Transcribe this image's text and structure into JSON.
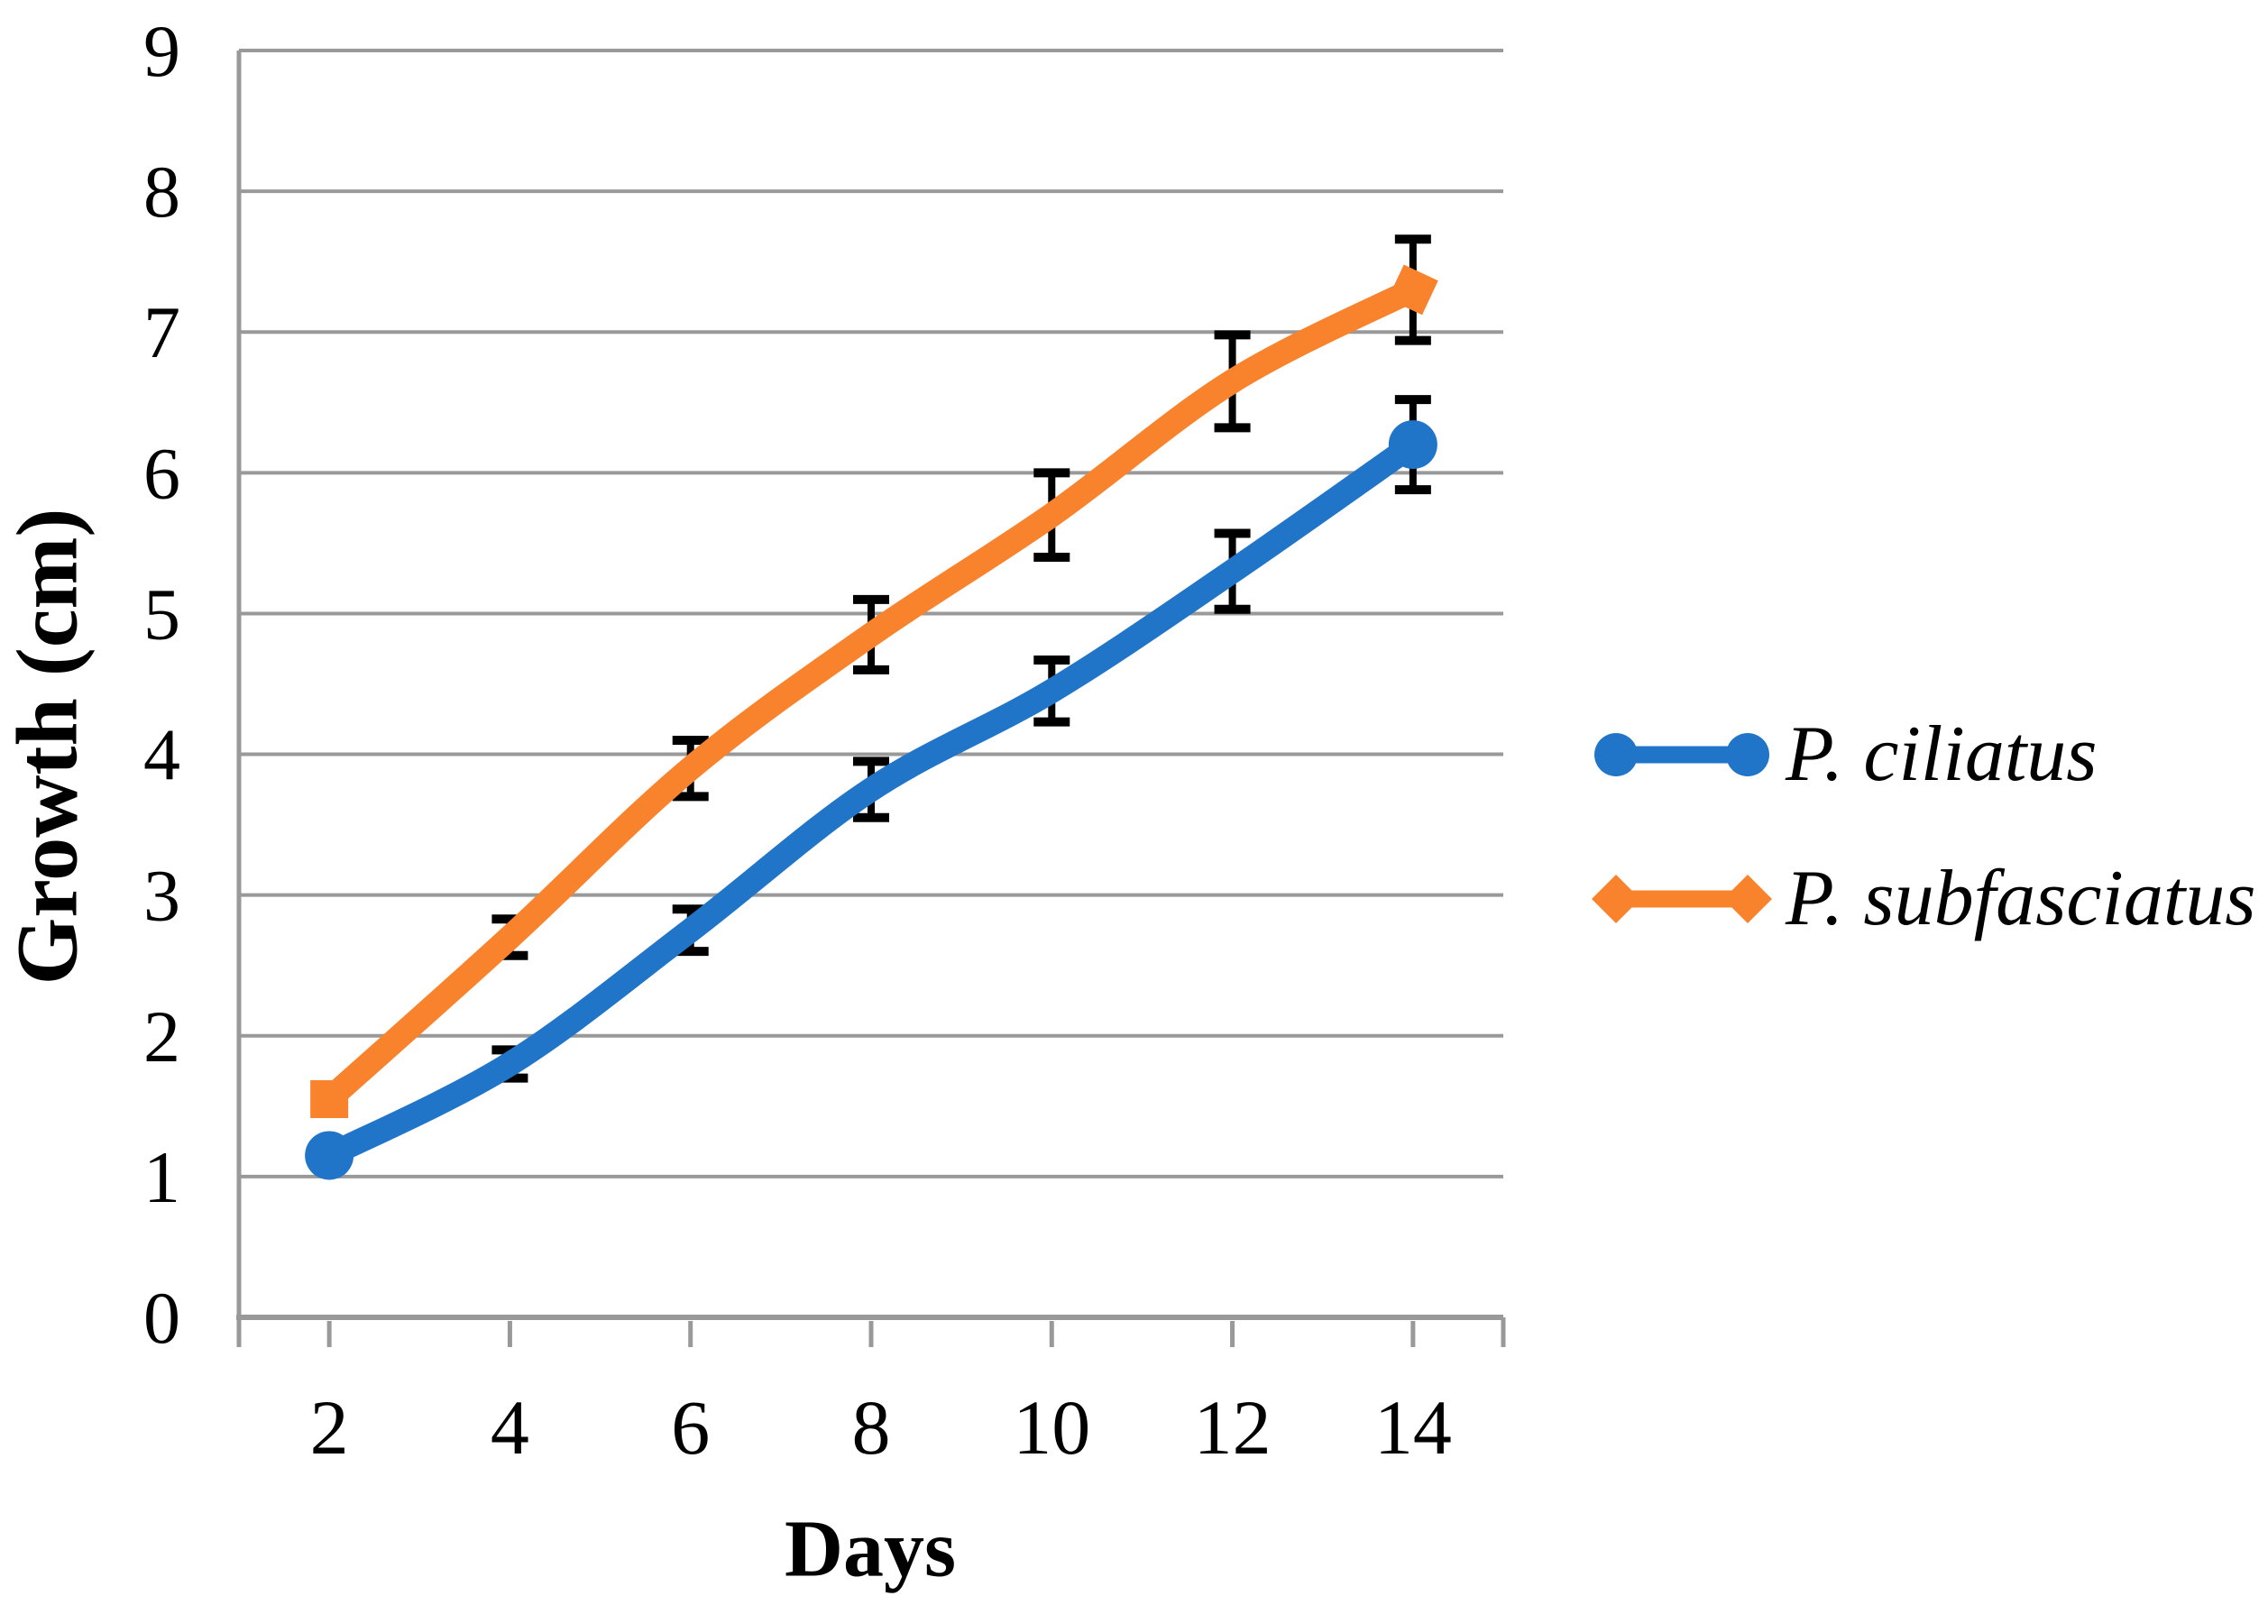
{
  "chart_data": {
    "type": "line",
    "title": "",
    "xlabel": "Days",
    "ylabel": "Growth (cm)",
    "x": [
      2,
      4,
      6,
      8,
      10,
      12,
      14
    ],
    "x_tick_labels": [
      "2",
      "4",
      "6",
      "8",
      "10",
      "12",
      "14"
    ],
    "y_ticks": [
      0,
      1,
      2,
      3,
      4,
      5,
      6,
      7,
      8,
      9
    ],
    "ylim": [
      0,
      9
    ],
    "xlim_categories": 7,
    "grid": "horizontal",
    "legend_position": "right",
    "colors": {
      "grid": "#999999",
      "axis": "#999999",
      "error_bar": "#000000",
      "text": "#000000"
    },
    "series": [
      {
        "name": "P. ciliatus",
        "color": "#2075C8",
        "marker": "circle",
        "marker_on": "endpoints-only",
        "smooth": true,
        "values": [
          1.15,
          1.8,
          2.75,
          3.75,
          4.45,
          5.3,
          6.2
        ],
        "error_bars": [
          0.05,
          0.1,
          0.15,
          0.2,
          0.22,
          0.27,
          0.32
        ]
      },
      {
        "name": "P. subfasciatus",
        "color": "#F8832C",
        "marker": "square",
        "marker_on": "endpoints-only",
        "smooth": true,
        "values": [
          1.55,
          2.7,
          3.9,
          4.85,
          5.7,
          6.65,
          7.3
        ],
        "error_bars": [
          0.08,
          0.13,
          0.2,
          0.25,
          0.3,
          0.33,
          0.36
        ]
      }
    ]
  }
}
